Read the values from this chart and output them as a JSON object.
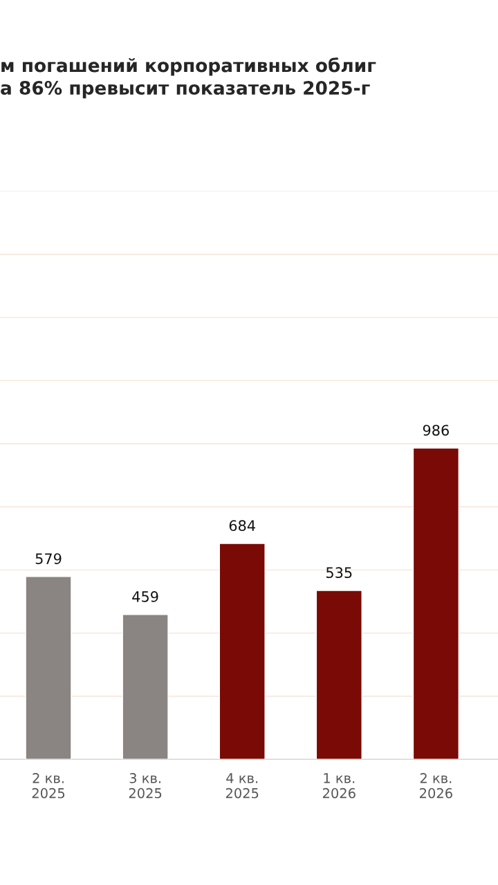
{
  "chart_data": {
    "type": "bar",
    "title": "м погашений корпоративных облиг\nа 86% превысит показатель 2025-г",
    "categories": [
      "2 кв.\n2025",
      "3 кв.\n2025",
      "4 кв.\n2025",
      "1 кв.\n2026",
      "2 кв.\n2026"
    ],
    "values": [
      579,
      459,
      684,
      535,
      986
    ],
    "colors": [
      "#8a8582",
      "#8a8582",
      "#7a0a05",
      "#7a0a05",
      "#7a0a05"
    ],
    "ylim": [
      0,
      1800
    ],
    "yticks": [
      {
        "value": 0,
        "label": null
      },
      {
        "value": 200,
        "label": null
      },
      {
        "value": 400,
        "label": null
      },
      {
        "value": 600,
        "label": null
      },
      {
        "value": 800,
        "label": null
      },
      {
        "value": 1000,
        "label": null
      },
      {
        "value": 1200,
        "label": null
      },
      {
        "value": 1400,
        "label": null
      },
      {
        "value": 1600,
        "label": null
      },
      {
        "value": 1800,
        "label": null
      }
    ],
    "grid": "y",
    "data_labels": true
  }
}
